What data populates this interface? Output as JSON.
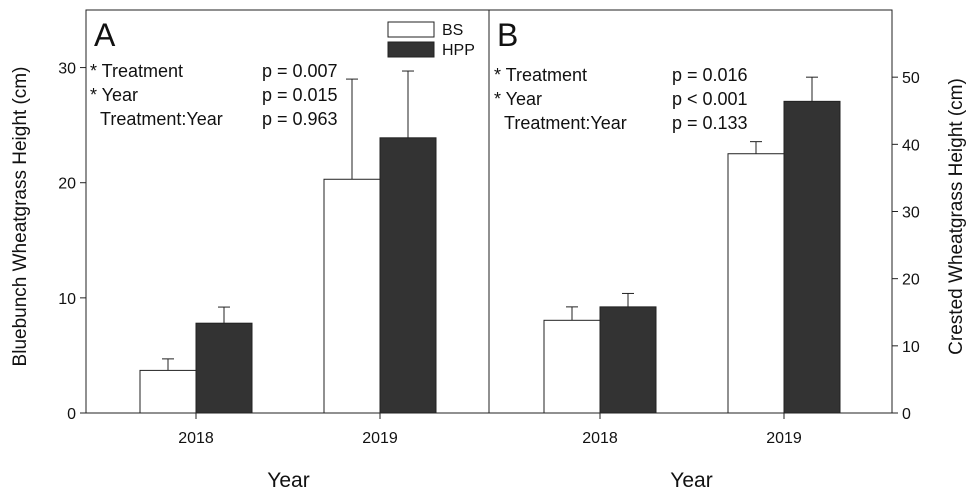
{
  "chart_data": [
    {
      "panel": "A",
      "type": "bar",
      "categories": [
        "2018",
        "2019"
      ],
      "xlabel": "Year",
      "ylabel": "Bluebunch Wheatgrass Height (cm)",
      "ylim": [
        0,
        35
      ],
      "yticks": [
        0,
        10,
        20,
        30
      ],
      "axis_side": "left",
      "series": [
        {
          "name": "BS",
          "color": "#ffffff",
          "values": [
            3.7,
            20.3
          ],
          "errors": [
            1.0,
            8.7
          ]
        },
        {
          "name": "HPP",
          "color": "#333333",
          "values": [
            7.8,
            23.9
          ],
          "errors": [
            1.4,
            5.8
          ]
        }
      ],
      "legend": {
        "placement": "top-right",
        "entries": [
          "BS",
          "HPP"
        ]
      },
      "stats": [
        {
          "label": "* Treatment",
          "value": "p = 0.007"
        },
        {
          "label": "* Year",
          "value": "p = 0.015"
        },
        {
          "label": "Treatment:Year",
          "value": "p = 0.963"
        }
      ]
    },
    {
      "panel": "B",
      "type": "bar",
      "categories": [
        "2018",
        "2019"
      ],
      "xlabel": "Year",
      "ylabel": "Crested Wheatgrass Height (cm)",
      "ylim": [
        0,
        60
      ],
      "yticks": [
        0,
        10,
        20,
        30,
        40,
        50
      ],
      "axis_side": "right",
      "series": [
        {
          "name": "BS",
          "color": "#ffffff",
          "values": [
            13.8,
            38.6
          ],
          "errors": [
            2.0,
            1.8
          ]
        },
        {
          "name": "HPP",
          "color": "#333333",
          "values": [
            15.8,
            46.4
          ],
          "errors": [
            2.0,
            3.6
          ]
        }
      ],
      "stats": [
        {
          "label": "* Treatment",
          "value": "p = 0.016"
        },
        {
          "label": "* Year",
          "value": "p < 0.001"
        },
        {
          "label": "Treatment:Year",
          "value": "p = 0.133"
        }
      ]
    }
  ]
}
